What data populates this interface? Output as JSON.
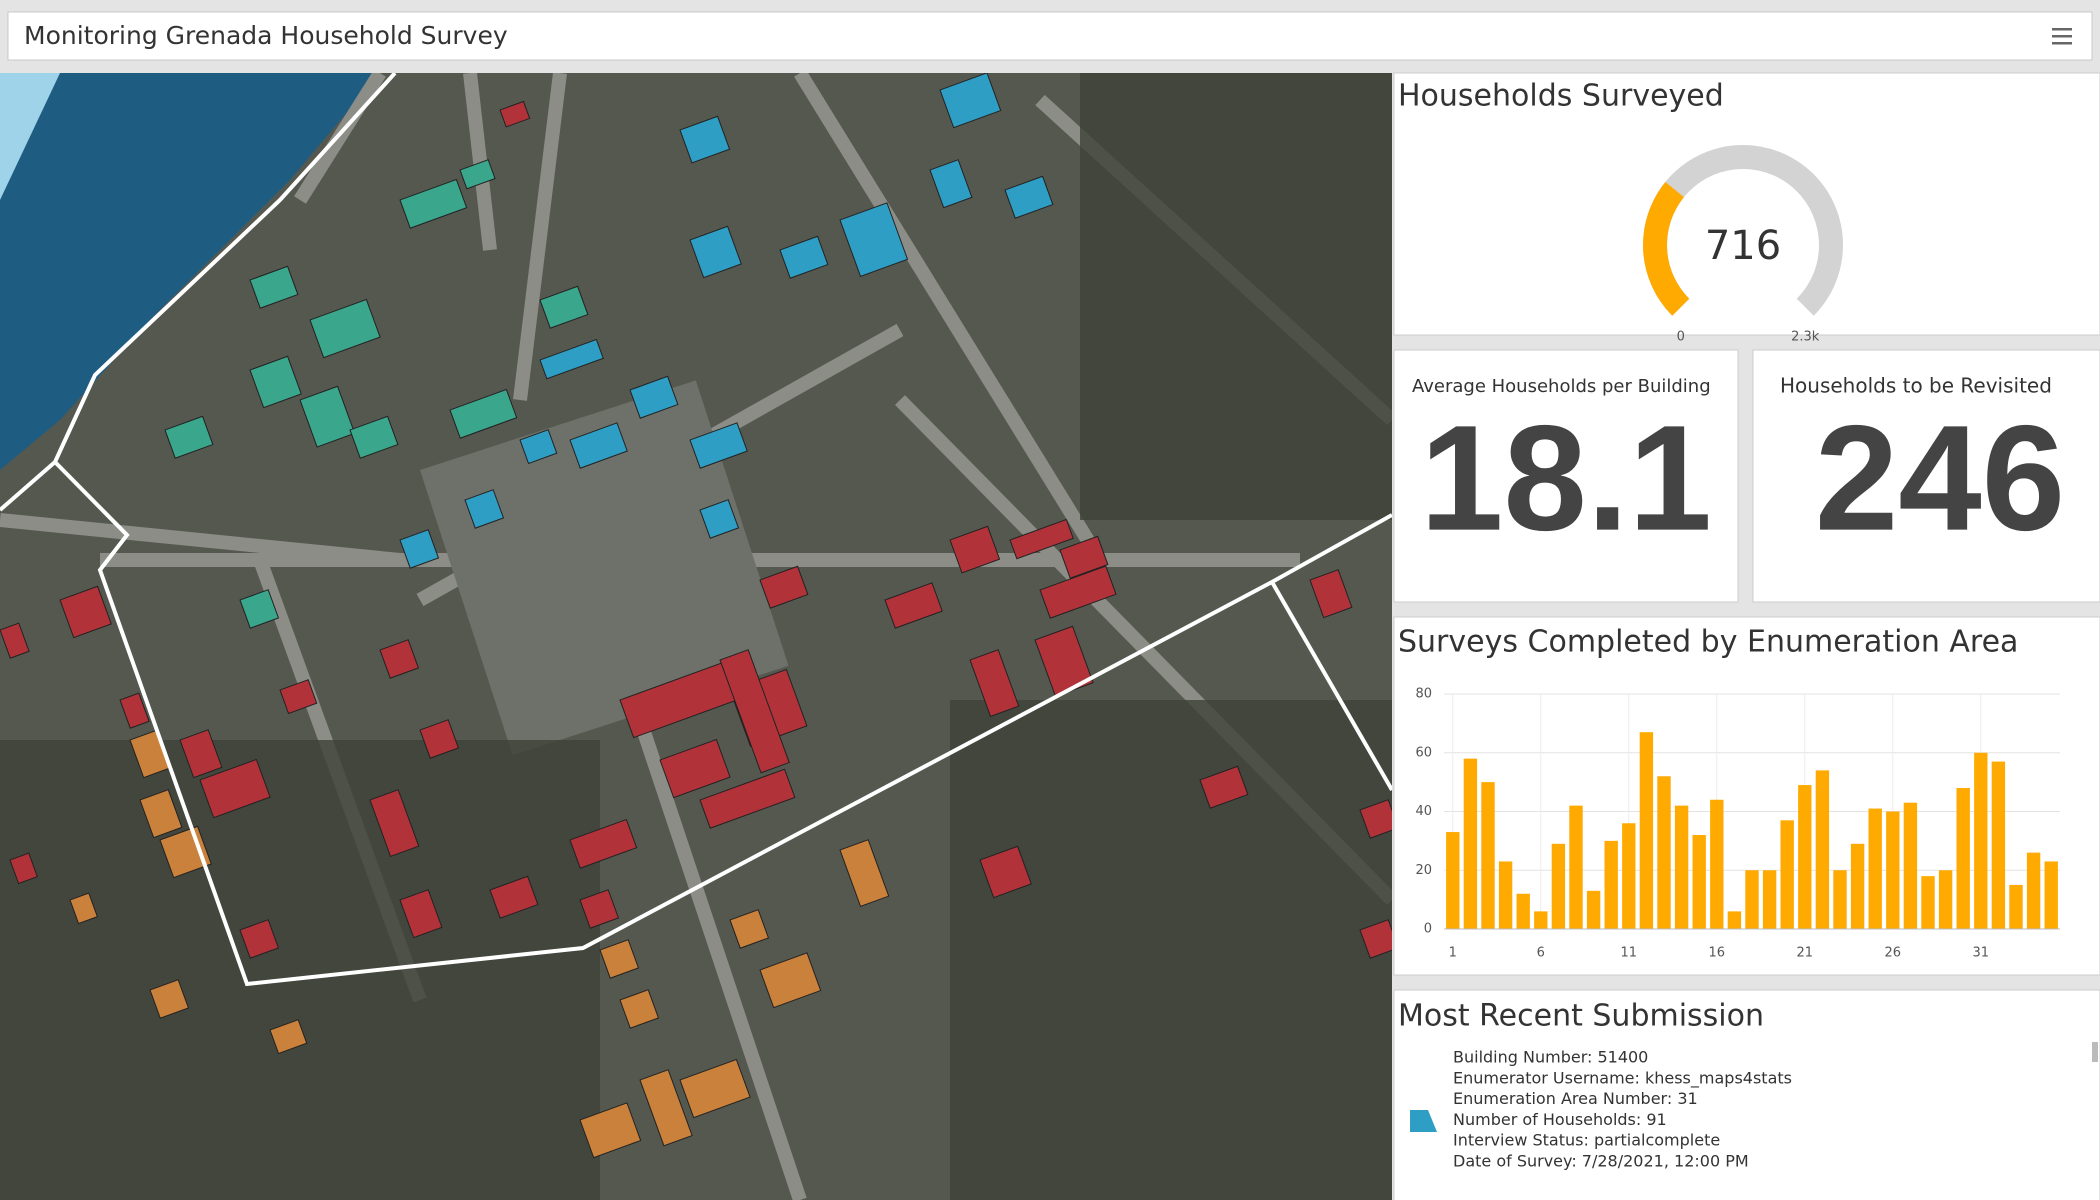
{
  "header": {
    "title": "Monitoring Grenada Household Survey"
  },
  "gauge": {
    "title": "Households Surveyed",
    "value": 716,
    "lim": [
      0,
      2300
    ],
    "ticks": [
      0,
      {
        "value": 2300,
        "label": "2.3k"
      }
    ],
    "color": "#ffaa00",
    "track": "#d3d3d3"
  },
  "indicators": [
    {
      "label": "Average Households per Building",
      "value": 18.1
    },
    {
      "label": "Households to be Revisited",
      "value": 246
    }
  ],
  "chart_data": {
    "type": "bar",
    "title": "Surveys Completed by Enumeration Area",
    "categories": [
      1,
      null,
      null,
      null,
      null,
      6,
      null,
      null,
      null,
      null,
      11,
      null,
      null,
      null,
      null,
      16,
      null,
      null,
      null,
      null,
      21,
      null,
      null,
      null,
      null,
      26,
      null,
      null,
      null,
      null,
      31,
      null,
      null,
      null,
      null
    ],
    "values": [
      33,
      58,
      50,
      23,
      12,
      6,
      29,
      42,
      13,
      30,
      36,
      67,
      52,
      42,
      32,
      44,
      6,
      20,
      20,
      37,
      49,
      54,
      20,
      29,
      41,
      40,
      43,
      18,
      20,
      48,
      60,
      57,
      15,
      26,
      23
    ],
    "color": "#ffaa00",
    "ylim": [
      0,
      80
    ],
    "yticks": [
      0,
      20,
      40,
      60,
      80
    ],
    "grid": true
  },
  "submission": {
    "title": "Most Recent Submission",
    "lines": [
      "Building Number: 51400",
      "Enumerator Username: khess_maps4stats",
      "Enumeration Area Number: 31",
      "Number of Households: 91",
      "Interview Status: partialcomplete",
      "Date of Survey: 7/28/2021, 12:00 PM"
    ]
  }
}
